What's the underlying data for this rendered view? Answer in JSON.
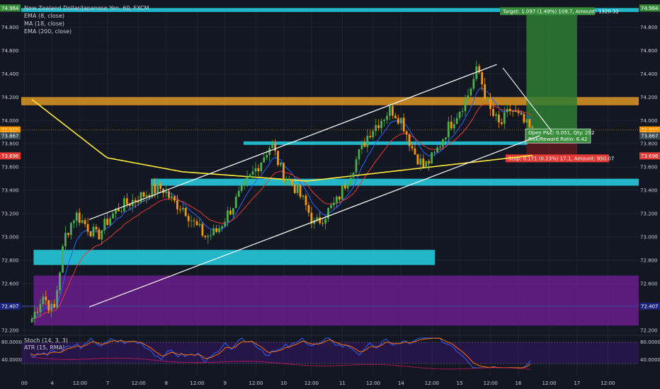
{
  "header": {
    "symbol": "New Zealand Dollar/Japanese Yen, 60, FXCM",
    "indicators": [
      "EMA (8, close)",
      "MA (18, close)",
      "EMA (200, close)"
    ]
  },
  "subpanel": {
    "stoch_label": "Stoch (14, 3, 3)",
    "atr_label": "ATR (15, RMA)",
    "ticks": [
      "80.0000",
      "40.0000"
    ]
  },
  "colors": {
    "background": "#131722",
    "up_candle": "#4caf50",
    "down_candle": "#ff9800",
    "ema8": "#2962ff",
    "ma18": "#e53935",
    "ema200": "#ffeb3b",
    "channel": "#ffffff",
    "zone_teal": "#26c6da",
    "zone_orange": "#f9a825",
    "zone_purple": "#7b1fa2",
    "target_green": "#2e7d32"
  },
  "chart_data": {
    "type": "candlestick",
    "y_ticks": [
      "74.800",
      "74.600",
      "74.400",
      "74.200",
      "74.000",
      "73.800",
      "73.600",
      "73.400",
      "73.200",
      "73.000",
      "72.800",
      "72.600",
      "72.400",
      "72.200"
    ],
    "ylim": [
      72.2,
      74.96
    ],
    "x_ticks": [
      "00",
      "4",
      "12:00",
      "7",
      "12:00",
      "8",
      "12:00",
      "9",
      "12:00",
      "10",
      "12:00",
      "11",
      "12:00",
      "14",
      "12:00",
      "15",
      "12:00",
      "16",
      "12:00",
      "17",
      "12:00"
    ],
    "price_labels": [
      {
        "text": "74.964",
        "value": 74.964,
        "color": "#388e3c"
      },
      {
        "text": "73.918",
        "value": 73.918,
        "color": "#ff9800"
      },
      {
        "text": "45:06",
        "value": 73.89,
        "color": "#ff9800"
      },
      {
        "text": "73.867",
        "value": 73.867,
        "color": "#37474f"
      },
      {
        "text": "73.696",
        "value": 73.696,
        "color": "#e53935"
      },
      {
        "text": "72.407",
        "value": 72.407,
        "color": "#1a237e"
      }
    ],
    "price_labels_left_extra": [
      {
        "text": "74.964",
        "value": 74.964,
        "color": "#388e3c"
      },
      {
        "text": "73.918",
        "value": 73.918,
        "color": "#ff9800"
      },
      {
        "text": "45:06",
        "value": 73.89,
        "color": "#ff9800"
      },
      {
        "text": "73.867",
        "value": 73.867,
        "color": "#37474f"
      },
      {
        "text": "73.696",
        "value": 73.696,
        "color": "#e53935"
      },
      {
        "text": "72.407",
        "value": 72.407,
        "color": "#1a237e"
      }
    ],
    "zones": [
      {
        "name": "resistance-zone",
        "y1": 74.2,
        "y2": 74.13,
        "color": "#f9a825",
        "opacity": 0.75,
        "x_start": 0,
        "x_end": 1
      },
      {
        "name": "target-band",
        "y1": 74.964,
        "y2": 74.93,
        "color": "#26c6da",
        "opacity": 0.9,
        "x_start": 0,
        "x_end": 1
      },
      {
        "name": "mid-zone",
        "y1": 73.82,
        "y2": 73.79,
        "color": "#26c6da",
        "opacity": 0.9,
        "x_start": 0.36,
        "x_end": 0.82
      },
      {
        "name": "support-zone",
        "y1": 73.5,
        "y2": 73.44,
        "color": "#26c6da",
        "opacity": 0.9,
        "x_start": 0.21,
        "x_end": 1
      },
      {
        "name": "lower-zone",
        "y1": 72.89,
        "y2": 72.76,
        "color": "#26c6da",
        "opacity": 0.9,
        "x_start": 0.02,
        "x_end": 0.67
      },
      {
        "name": "purple-zone",
        "y1": 72.67,
        "y2": 72.24,
        "color": "#7b1fa2",
        "opacity": 0.7,
        "x_start": 0.02,
        "x_end": 1
      }
    ],
    "position": {
      "target_text": "Target: 1.097 (1.49%) 109.7, Amount: 1320.32",
      "open_pl_text": "Open P&L: 0.051, Qty: 292",
      "ratio_text": "Risk/Reward Ratio: 6.42",
      "stop_text": "Stop: 0.171 (0.23%) 17.1, Amount: 950.07",
      "entry": 73.867,
      "target": 74.964,
      "stop": 73.696
    },
    "channel": {
      "upper": [
        [
          0.11,
          73.15
        ],
        [
          0.77,
          74.48
        ]
      ],
      "lower": [
        [
          0.11,
          72.4
        ],
        [
          0.84,
          73.87
        ]
      ]
    },
    "trendline": [
      [
        0.78,
        74.45
      ],
      [
        0.86,
        73.9
      ]
    ],
    "candles_close_path": [
      72.3,
      72.5,
      72.35,
      73.0,
      73.2,
      73.1,
      73.0,
      73.15,
      73.25,
      73.3,
      73.35,
      73.4,
      73.42,
      73.3,
      73.25,
      73.1,
      73.0,
      73.05,
      73.2,
      73.35,
      73.5,
      73.65,
      73.8,
      73.55,
      73.45,
      73.3,
      73.1,
      73.2,
      73.3,
      73.5,
      73.7,
      73.9,
      74.0,
      74.1,
      74.0,
      73.75,
      73.6,
      73.7,
      73.9,
      74.05,
      74.2,
      74.45,
      74.1,
      73.95,
      74.1,
      74.0,
      73.9
    ]
  }
}
